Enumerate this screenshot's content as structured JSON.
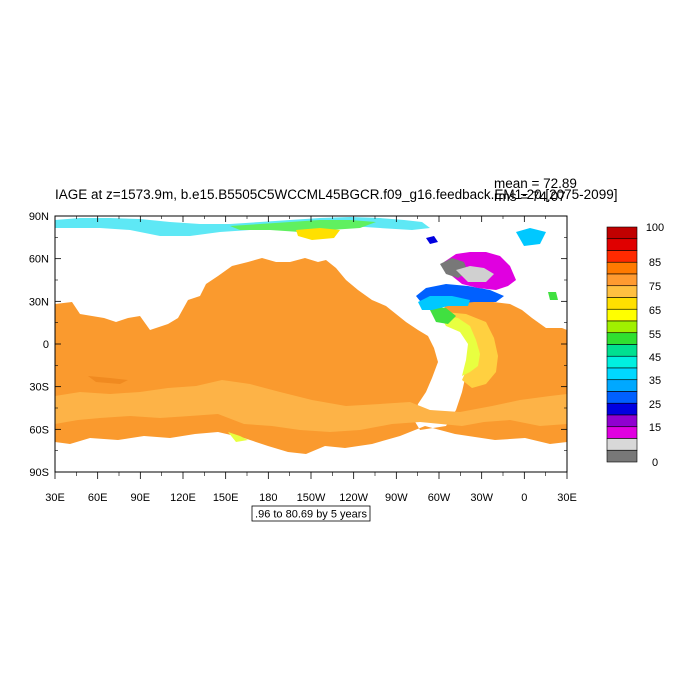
{
  "title": "IAGE at z=1573.9m, b.e15.B5505C5WCCML45BGCR.f09_g16.feedback.EM1-20 [2075-2099]",
  "stats": {
    "mean": "mean = 72.89",
    "rms": "rms = 74.07"
  },
  "contour_info": ".96 to 80.69 by 5 years",
  "lat_labels": [
    "90N",
    "60N",
    "30N",
    "0",
    "30S",
    "60S",
    "90S"
  ],
  "lon_labels": [
    "30E",
    "60E",
    "90E",
    "120E",
    "150E",
    "180",
    "150W",
    "120W",
    "90W",
    "60W",
    "30W",
    "0",
    "30E"
  ],
  "colorbar": {
    "labels": [
      "100",
      "85",
      "75",
      "65",
      "55",
      "45",
      "35",
      "25",
      "15",
      "0"
    ],
    "colors": [
      "#c00000",
      "#e00000",
      "#ff2a00",
      "#ff7a00",
      "#ff9a30",
      "#ffc040",
      "#ffe000",
      "#ffff00",
      "#a0f000",
      "#30e030",
      "#00e090",
      "#00f0e0",
      "#00d8ff",
      "#00a8ff",
      "#0060ff",
      "#0000e0",
      "#9000d0",
      "#e000e0",
      "#d8d8d8",
      "#787878"
    ]
  },
  "fill_colors": {
    "ocean_main": "#fa9a2e",
    "ocean_light": "#fdb347",
    "arctic_blue": "#5ee8f5",
    "atlantic_magenta": "#e000e0",
    "atlantic_gray": "#787878",
    "gulf_blue": "#0060ff"
  }
}
